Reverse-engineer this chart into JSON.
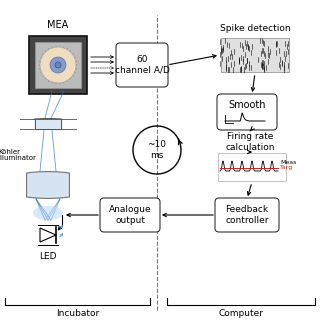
{
  "bg_color": "#ffffff",
  "blue_color": "#3377cc",
  "red_color": "#cc2222",
  "labels": {
    "mea": "MEA",
    "spike": "Spike detection",
    "smooth": "Smooth",
    "firing": "Firing rate\ncalculation",
    "loop": "~10\nms",
    "koehler": "Köhler\nilluminator",
    "led": "LED",
    "incubator": "Incubator",
    "computer": "Computer",
    "meas": "Meas",
    "targ": "Targ",
    "ad": "60\nchannel A/D",
    "analogue": "Analogue\noutput",
    "feedback": "Feedback\ncontroller"
  }
}
